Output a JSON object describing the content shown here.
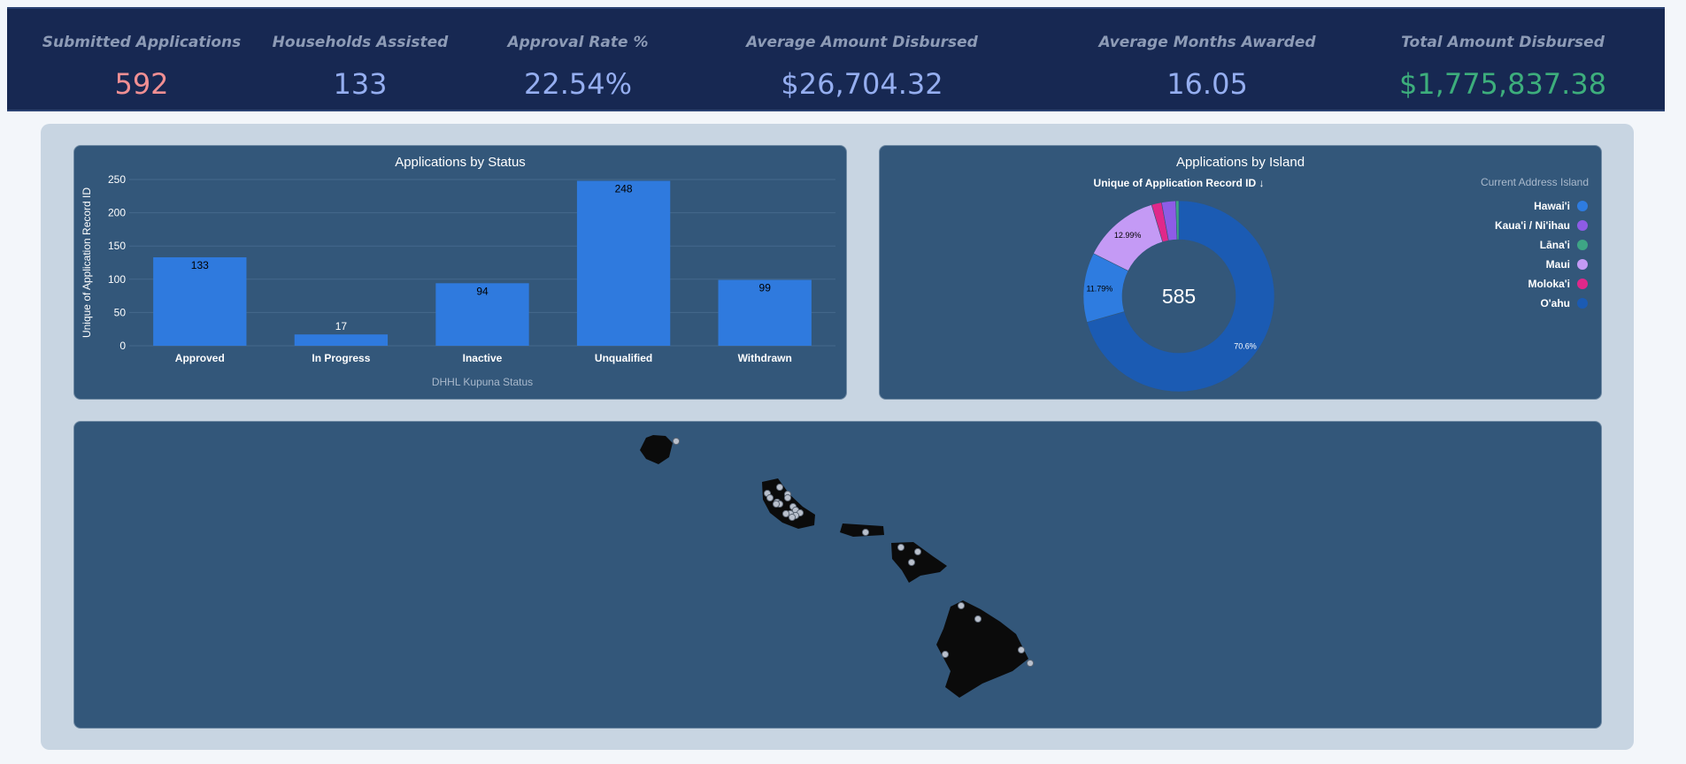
{
  "kpis": [
    {
      "label": "Submitted Applications",
      "value": "592",
      "color": "#f08f93"
    },
    {
      "label": "Households Assisted",
      "value": "133",
      "color": "#95aef0"
    },
    {
      "label": "Approval Rate %",
      "value": "22.54%",
      "color": "#95aef0"
    },
    {
      "label": "Average Amount Disbursed",
      "value": "$26,704.32",
      "color": "#95aef0"
    },
    {
      "label": "Average Months Awarded",
      "value": "16.05",
      "color": "#95aef0"
    },
    {
      "label": "Total Amount Disbursed",
      "value": "$1,775,837.38",
      "color": "#3dae7c"
    }
  ],
  "chart_data": [
    {
      "type": "bar",
      "title": "Applications by Status",
      "xlabel": "DHHL Kupuna Status",
      "ylabel": "Unique of Application Record ID",
      "categories": [
        "Approved",
        "In Progress",
        "Inactive",
        "Unqualified",
        "Withdrawn"
      ],
      "values": [
        133,
        17,
        94,
        248,
        99
      ],
      "data_labels": [
        "133",
        "17",
        "94",
        "248",
        "99"
      ],
      "ylim": [
        0,
        250
      ],
      "yticks": [
        0,
        50,
        100,
        150,
        200,
        250
      ],
      "ytick_labels": [
        "0",
        "50",
        "100",
        "150",
        "200",
        "250"
      ],
      "grid": true,
      "bar_color": "#2f7ade"
    },
    {
      "type": "pie",
      "title": "Applications by Island",
      "subtitle": "Unique of Application Record ID ↓",
      "center_label": "585",
      "legend_title": "Current Address Island",
      "legend_position": "right",
      "labels": [
        "Hawai'i",
        "Kaua'i / Ni'ihau",
        "Lāna'i",
        "Maui",
        "Moloka'i",
        "O'ahu"
      ],
      "colors": [
        "#2e7ce0",
        "#8e5ce6",
        "#3ea585",
        "#c49af5",
        "#e0288a",
        "#1b5bb3"
      ],
      "slice_order": [
        5,
        0,
        3,
        4,
        1,
        2
      ],
      "slice_values": [
        413,
        69,
        76,
        10,
        14,
        3
      ],
      "slice_labels": [
        "70.6%",
        "11.79%",
        "12.99%",
        "",
        "",
        ""
      ]
    }
  ],
  "map": {
    "land_color": "#0b0b0b",
    "marker_color": "#b9c0cc"
  }
}
